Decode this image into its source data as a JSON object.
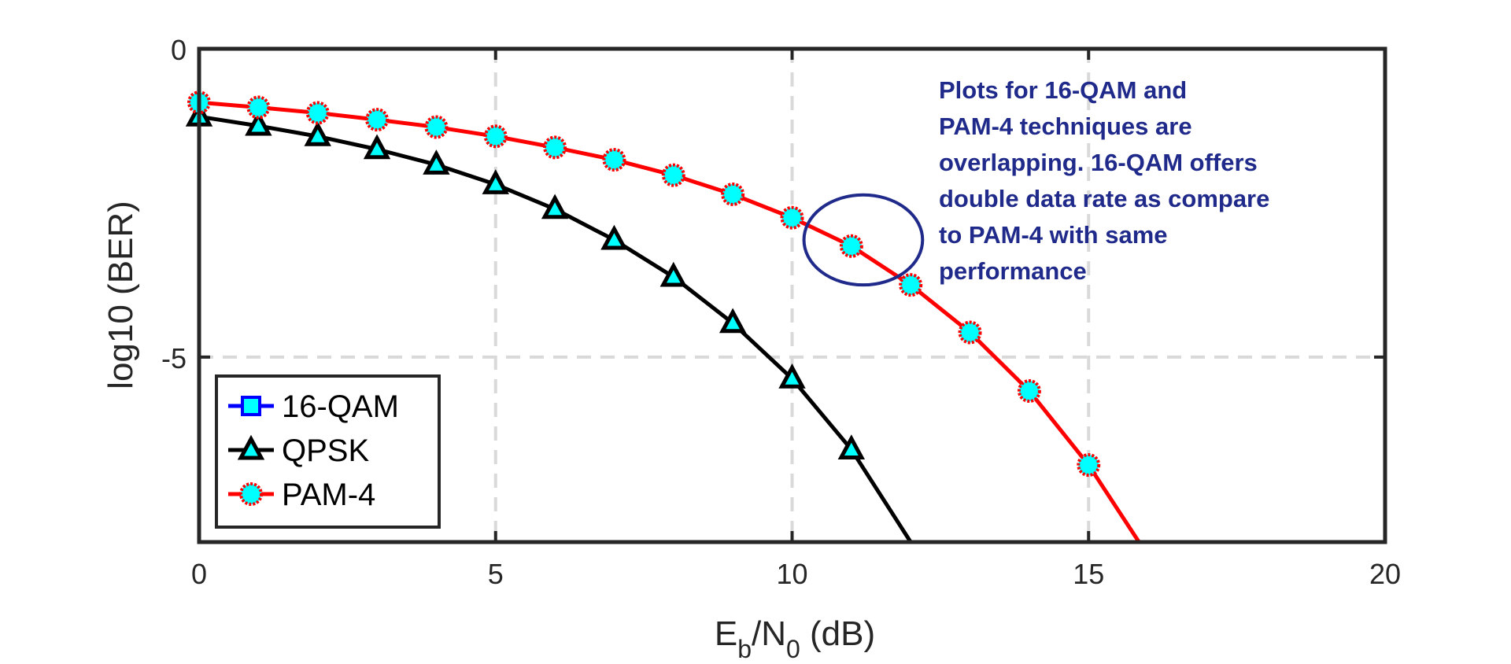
{
  "chart_data": {
    "type": "line",
    "title": "",
    "xlabel": {
      "main": "E",
      "sub1": "b",
      "mid": "/N",
      "sub2": "0",
      "tail": " (dB)"
    },
    "ylabel": "log10 (BER)",
    "xlim": [
      0,
      20
    ],
    "ylim": [
      -8,
      0
    ],
    "xticks": [
      0,
      5,
      10,
      15,
      20
    ],
    "yticks": [
      0,
      -5
    ],
    "ytick_labels": [
      "0",
      "-5"
    ],
    "grid": true,
    "legend_position": "bottom-left",
    "series": [
      {
        "name": "16-QAM",
        "color": "#0000ff",
        "marker": "square",
        "marker_fill": "#00ffff",
        "x": [],
        "y": []
      },
      {
        "name": "QPSK",
        "color": "#000000",
        "marker": "triangle",
        "marker_fill": "#00ffff",
        "x": [
          0,
          1,
          2,
          3,
          4,
          5,
          6,
          7,
          8,
          9,
          10,
          11,
          12
        ],
        "y": [
          -1.1,
          -1.25,
          -1.42,
          -1.63,
          -1.88,
          -2.2,
          -2.6,
          -3.1,
          -3.7,
          -4.45,
          -5.35,
          -6.5,
          -8.0
        ],
        "marker_count": 12
      },
      {
        "name": "PAM-4",
        "color": "#ff0000",
        "marker": "circle",
        "marker_fill": "#00ffff",
        "x": [
          0,
          1,
          2,
          3,
          4,
          5,
          6,
          7,
          8,
          9,
          10,
          11,
          12,
          13,
          14,
          15,
          15.85
        ],
        "y": [
          -0.87,
          -0.95,
          -1.04,
          -1.15,
          -1.27,
          -1.42,
          -1.6,
          -1.8,
          -2.05,
          -2.36,
          -2.74,
          -3.2,
          -3.83,
          -4.6,
          -5.55,
          -6.75,
          -8.0
        ],
        "marker_count": 16
      }
    ],
    "annotation": {
      "lines": [
        "Plots for 16-QAM and",
        "PAM-4 techniques are",
        "overlapping. 16-QAM offers",
        "double data rate as compare",
        "to PAM-4 with same",
        "performance"
      ],
      "color": "#1f2a8a",
      "ellipse_center": [
        11.2,
        -3.1
      ],
      "ellipse_radii": [
        1.0,
        0.73
      ]
    }
  }
}
